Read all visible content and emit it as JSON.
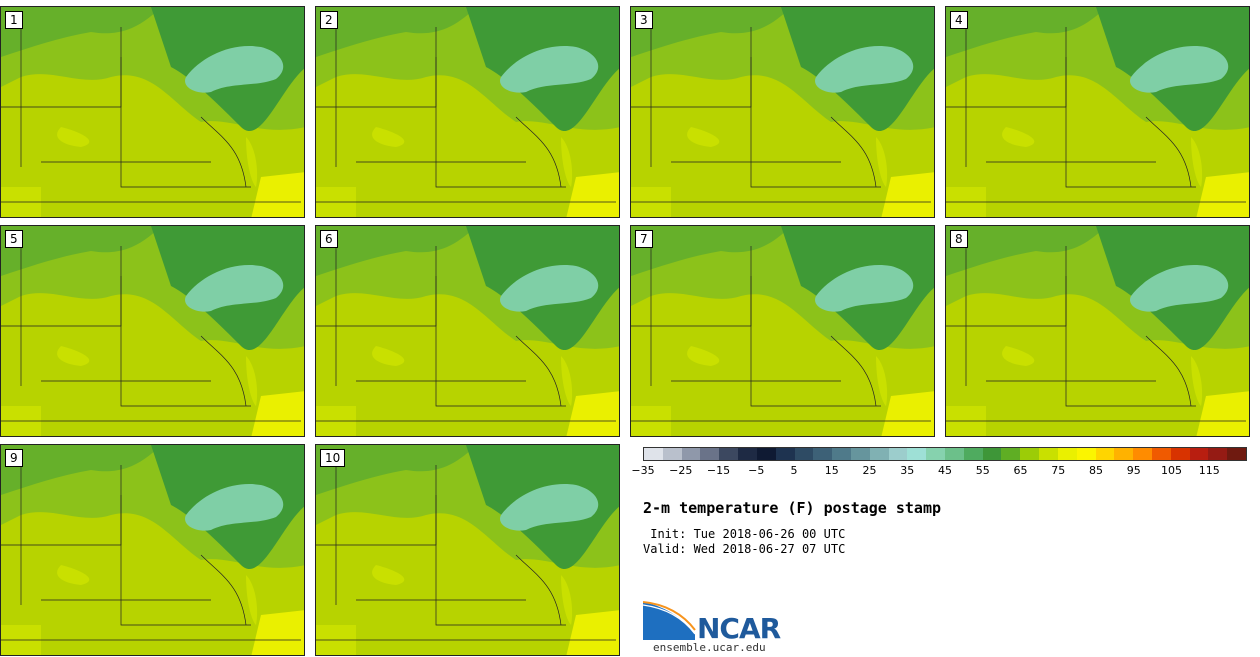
{
  "panels": [
    {
      "label": "1"
    },
    {
      "label": "2"
    },
    {
      "label": "3"
    },
    {
      "label": "4"
    },
    {
      "label": "5"
    },
    {
      "label": "6"
    },
    {
      "label": "7"
    },
    {
      "label": "8"
    },
    {
      "label": "9"
    },
    {
      "label": "10"
    }
  ],
  "colorbar": {
    "ticks": [
      "−35",
      "−25",
      "−15",
      "−5",
      "5",
      "15",
      "25",
      "35",
      "45",
      "55",
      "65",
      "75",
      "85",
      "95",
      "105",
      "115"
    ],
    "colors": [
      "#dfe3ea",
      "#b9c0cc",
      "#8f98aa",
      "#6a7389",
      "#3c4860",
      "#1e2a44",
      "#0f1a33",
      "#1e3350",
      "#2e4b64",
      "#3d6177",
      "#4f7a8a",
      "#66959d",
      "#80b1b3",
      "#9ccdcc",
      "#9ee0d6",
      "#86d2ae",
      "#6cc08a",
      "#4fab5f",
      "#3e9638",
      "#5fae24",
      "#9ccc07",
      "#c9e000",
      "#eaf000",
      "#fbf500",
      "#ffd500",
      "#ffb200",
      "#ff8c00",
      "#f05a00",
      "#d83300",
      "#b81e10",
      "#951b14",
      "#6f1a10"
    ]
  },
  "title": "2-m temperature (F) postage stamp",
  "init": " Init: Tue 2018-06-26 00 UTC",
  "valid": "Valid: Wed 2018-06-27 07 UTC",
  "logo": {
    "text": "NCAR",
    "site": "ensemble.ucar.edu"
  }
}
